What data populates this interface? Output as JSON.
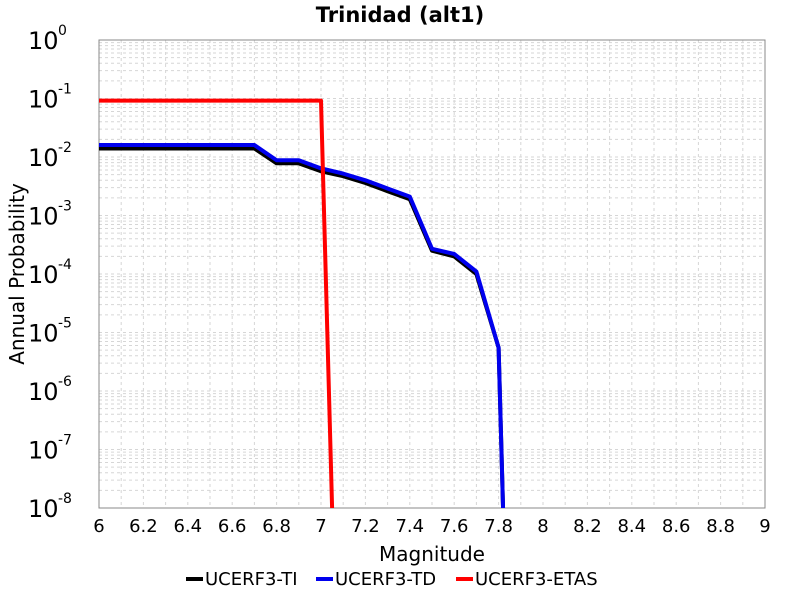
{
  "chart_data": {
    "type": "line",
    "title": "Trinidad (alt1)",
    "xlabel": "Magnitude",
    "ylabel": "Annual Probability",
    "xlim": [
      6,
      9
    ],
    "ylim": [
      1e-08,
      1
    ],
    "y_scale": "log",
    "grid": true,
    "legend_position": "bottom",
    "x_ticks": [
      "6",
      "6.2",
      "6.4",
      "6.6",
      "6.8",
      "7",
      "7.2",
      "7.4",
      "7.6",
      "7.8",
      "8",
      "8.2",
      "8.4",
      "8.6",
      "8.8",
      "9"
    ],
    "y_ticks": [
      {
        "base": "10",
        "exp": "0",
        "value": 1
      },
      {
        "base": "10",
        "exp": "-1",
        "value": 0.1
      },
      {
        "base": "10",
        "exp": "-2",
        "value": 0.01
      },
      {
        "base": "10",
        "exp": "-3",
        "value": 0.001
      },
      {
        "base": "10",
        "exp": "-4",
        "value": 0.0001
      },
      {
        "base": "10",
        "exp": "-5",
        "value": 1e-05
      },
      {
        "base": "10",
        "exp": "-6",
        "value": 1e-06
      },
      {
        "base": "10",
        "exp": "-7",
        "value": 1e-07
      },
      {
        "base": "10",
        "exp": "-8",
        "value": 1e-08
      }
    ],
    "series": [
      {
        "name": "UCERF3-TI",
        "color": "#000000",
        "x": [
          6.0,
          6.1,
          6.2,
          6.3,
          6.4,
          6.5,
          6.6,
          6.7,
          6.8,
          6.9,
          7.0,
          7.1,
          7.2,
          7.3,
          7.4,
          7.5,
          7.6,
          7.7,
          7.8,
          7.82
        ],
        "y": [
          0.014,
          0.014,
          0.014,
          0.014,
          0.014,
          0.014,
          0.014,
          0.014,
          0.0078,
          0.0078,
          0.0057,
          0.0047,
          0.0036,
          0.0026,
          0.0019,
          0.00025,
          0.0002,
          0.0001,
          5.5e-06,
          1e-08
        ]
      },
      {
        "name": "UCERF3-TD",
        "color": "#0000ee",
        "x": [
          6.0,
          6.1,
          6.2,
          6.3,
          6.4,
          6.5,
          6.6,
          6.7,
          6.8,
          6.9,
          7.0,
          7.1,
          7.2,
          7.3,
          7.4,
          7.5,
          7.6,
          7.7,
          7.8,
          7.82
        ],
        "y": [
          0.016,
          0.016,
          0.016,
          0.016,
          0.016,
          0.016,
          0.016,
          0.016,
          0.0088,
          0.0088,
          0.0064,
          0.0052,
          0.004,
          0.0029,
          0.0021,
          0.00027,
          0.00022,
          0.00011,
          5.5e-06,
          1e-08
        ]
      },
      {
        "name": "UCERF3-ETAS",
        "color": "#ff0000",
        "x": [
          6.0,
          6.5,
          7.0,
          7.05
        ],
        "y": [
          0.092,
          0.092,
          0.092,
          1e-08
        ]
      }
    ]
  }
}
